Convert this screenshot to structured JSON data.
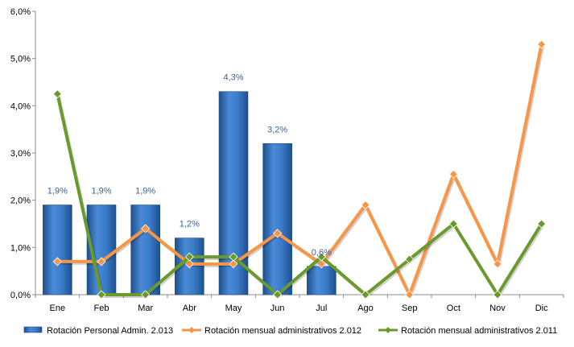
{
  "chart_data": {
    "type": "bar",
    "categories": [
      "Ene",
      "Feb",
      "Mar",
      "Abr",
      "May",
      "Jun",
      "Jul",
      "Ago",
      "Sep",
      "Oct",
      "Nov",
      "Dic"
    ],
    "ylim": [
      0,
      6
    ],
    "yticks": [
      0,
      1,
      2,
      3,
      4,
      5,
      6
    ],
    "ytick_labels": [
      "0,0%",
      "1,0%",
      "2,0%",
      "3,0%",
      "4,0%",
      "5,0%",
      "6,0%"
    ],
    "grid": false,
    "legend_position": "bottom",
    "series": [
      {
        "name": "Rotación Personal Admin. 2.013",
        "type": "bar",
        "color": "#2f6fb7",
        "values": [
          1.9,
          1.9,
          1.9,
          1.2,
          4.3,
          3.2,
          0.6,
          null,
          null,
          null,
          null,
          null
        ],
        "labels": [
          "1,9%",
          "1,9%",
          "1,9%",
          "1,2%",
          "4,3%",
          "3,2%",
          "0,6%",
          "",
          "",
          "",
          "",
          ""
        ],
        "label_color": "#3a62a0"
      },
      {
        "name": "Rotación mensual administrativos 2.012",
        "type": "line",
        "color": "#f79646",
        "values": [
          0.7,
          0.7,
          1.4,
          0.65,
          0.65,
          1.3,
          0.65,
          1.9,
          0.0,
          2.55,
          0.65,
          5.3
        ]
      },
      {
        "name": "Rotación mensual administrativos 2.011",
        "type": "line",
        "color": "#6a9a2c",
        "values": [
          4.25,
          0.0,
          0.0,
          0.8,
          0.8,
          0.0,
          0.8,
          0.0,
          0.75,
          1.5,
          0.0,
          1.5
        ]
      }
    ]
  }
}
